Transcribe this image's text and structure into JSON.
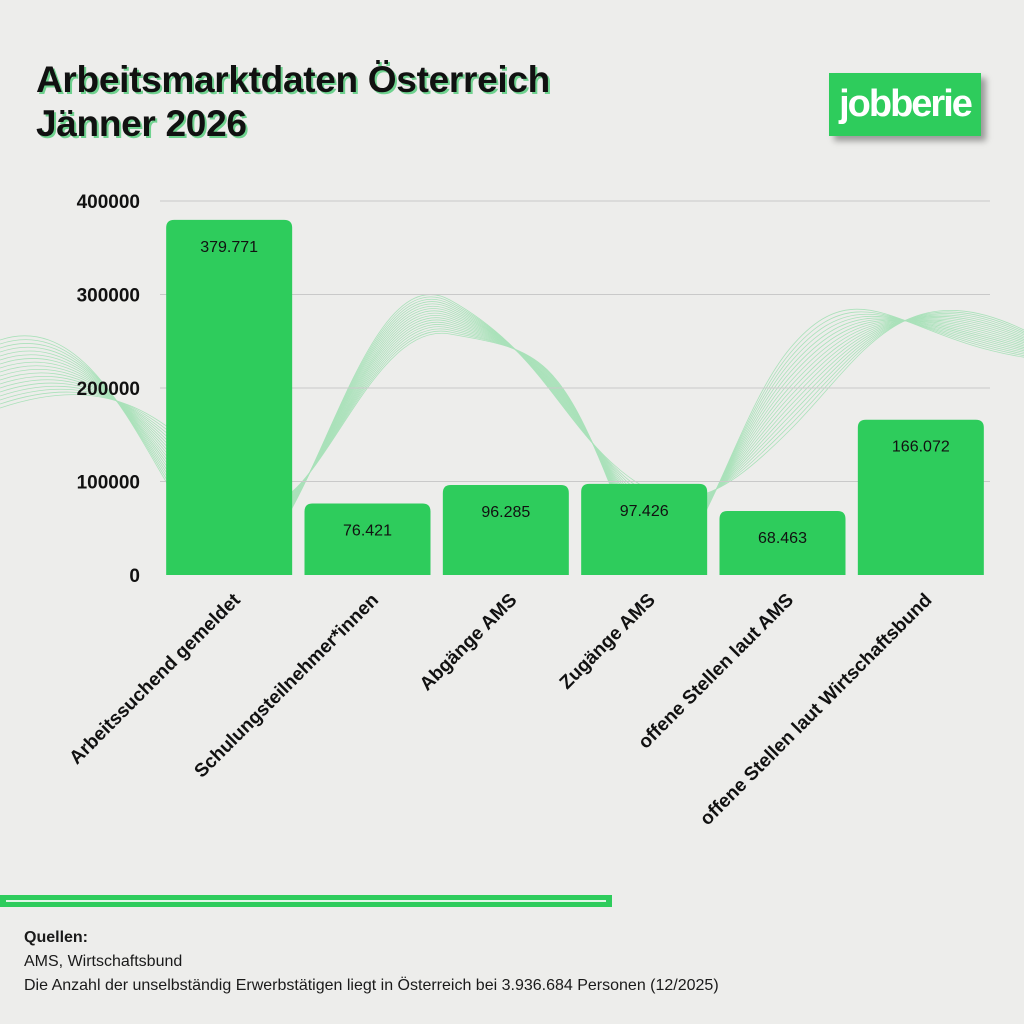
{
  "title_line1": "Arbeitsmarktdaten Österreich",
  "title_line2": "Jänner 2026",
  "logo_text": "jobberie",
  "colors": {
    "bar": "#2ecc5c",
    "wave": "#9adfae",
    "background": "#ededeb"
  },
  "chart_data": {
    "type": "bar",
    "categories": [
      "Arbeitssuchend gemeldet",
      "Schulungsteilnehmer*innen",
      "Abgänge AMS",
      "Zugänge AMS",
      "offene Stellen laut AMS",
      "offene Stellen laut Wirtschaftsbund"
    ],
    "values": [
      379771,
      76421,
      96285,
      97426,
      68463,
      166072
    ],
    "data_labels": [
      "379.771",
      "76.421",
      "96.285",
      "97.426",
      "68.463",
      "166.072"
    ],
    "yticks": [
      "0",
      "100000",
      "200000",
      "300000",
      "400000"
    ],
    "ylim": [
      0,
      400000
    ],
    "grid": true
  },
  "footer": {
    "heading": "Quellen:",
    "sources": "AMS, Wirtschaftsbund",
    "note": "Die Anzahl der unselbständig Erwerbstätigen liegt in Österreich bei 3.936.684 Personen (12/2025)"
  }
}
